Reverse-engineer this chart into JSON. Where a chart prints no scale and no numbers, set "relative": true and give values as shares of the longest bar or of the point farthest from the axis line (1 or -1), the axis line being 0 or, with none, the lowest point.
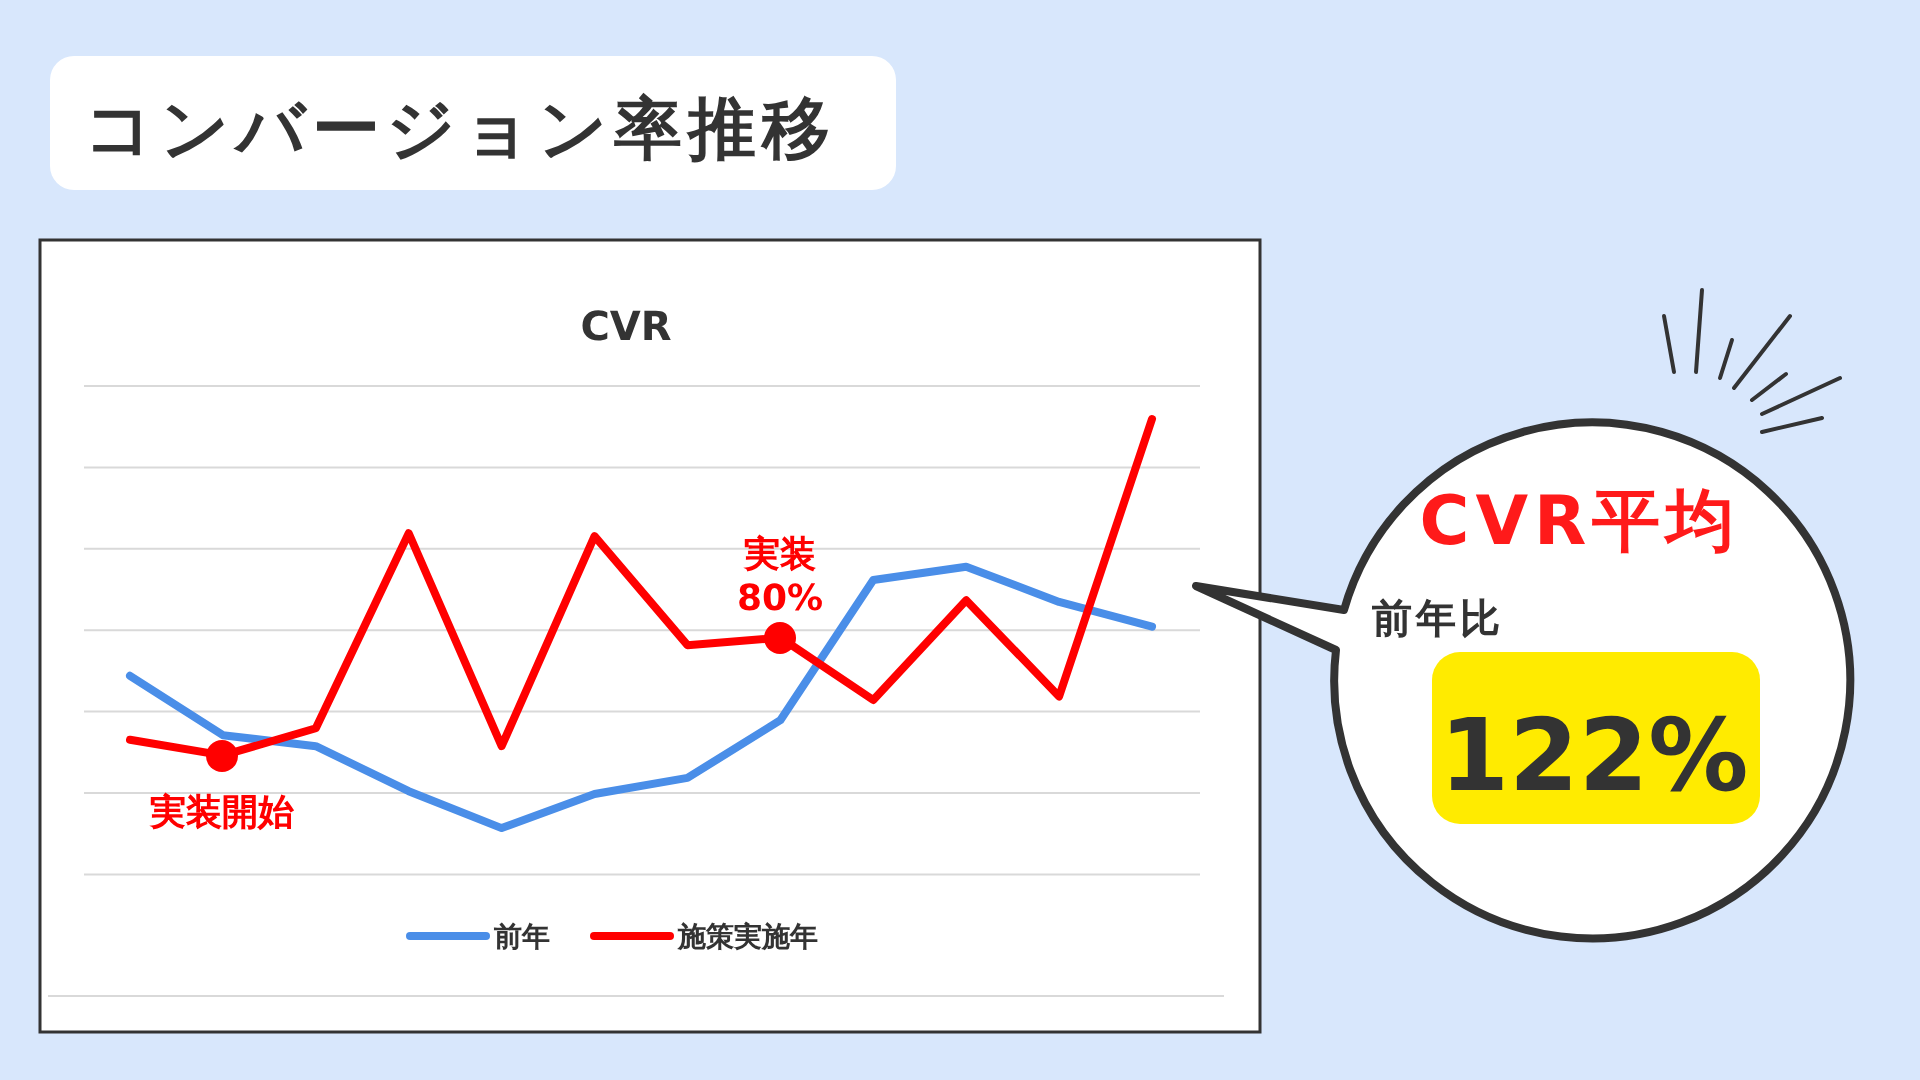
{
  "chart_data": {
    "type": "line",
    "title": "コンバージョン率推移",
    "subtitle": "CVR",
    "relative": true,
    "grid": "y",
    "legend": "bottom",
    "marker": "none",
    "line_style": "solid",
    "categories": [
      null,
      null,
      null,
      null,
      null,
      null,
      null,
      null,
      null,
      null,
      null,
      null
    ],
    "series": [
      {
        "name": "前年",
        "color": "#4a8ee8",
        "values": [
          0.555,
          0.452,
          0.433,
          0.355,
          0.291,
          0.35,
          0.378,
          0.478,
          0.721,
          0.744,
          0.683,
          0.64
        ]
      },
      {
        "name": "施策実施年",
        "color": "#ff0000",
        "values": [
          0.444,
          0.417,
          0.464,
          0.802,
          0.433,
          0.797,
          0.608,
          0.621,
          0.513,
          0.686,
          0.519,
          1
        ]
      }
    ],
    "annotations": [
      "実装開始",
      "実装\n80%",
      "CVR平均",
      "前年比",
      "122%"
    ]
  }
}
